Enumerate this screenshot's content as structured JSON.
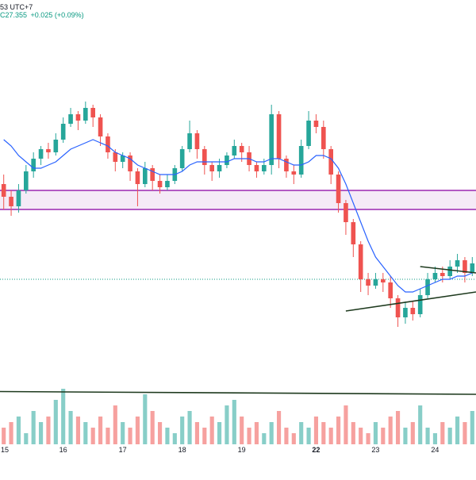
{
  "header": {
    "time_fragment": "53 UTC+7",
    "last_price": "C27.355",
    "change": "+0.025 (+0.09%)"
  },
  "colors": {
    "up": "#26a69a",
    "down": "#ef5350",
    "ma": "#2962ff",
    "zone_line": "#9c27b0",
    "zone_fill": "#f3e5f5",
    "trendline": "#1e3a1e",
    "price_line": "#089981"
  },
  "chart_data": {
    "type": "candlestick",
    "x_axis": {
      "tick_labels": [
        "15",
        "16",
        "17",
        "18",
        "19",
        "22",
        "23",
        "24"
      ],
      "bold_labels": [
        "22"
      ]
    },
    "grid": false,
    "price_series": {
      "candles": [
        [
          0.52,
          0.48,
          0.55,
          0.44
        ],
        [
          0.48,
          0.45,
          0.5,
          0.42
        ],
        [
          0.45,
          0.5,
          0.52,
          0.43
        ],
        [
          0.5,
          0.56,
          0.58,
          0.49
        ],
        [
          0.56,
          0.6,
          0.62,
          0.54
        ],
        [
          0.6,
          0.63,
          0.64,
          0.58
        ],
        [
          0.63,
          0.62,
          0.65,
          0.6
        ],
        [
          0.62,
          0.66,
          0.68,
          0.61
        ],
        [
          0.66,
          0.71,
          0.73,
          0.65
        ],
        [
          0.71,
          0.74,
          0.76,
          0.7
        ],
        [
          0.74,
          0.72,
          0.75,
          0.69
        ],
        [
          0.72,
          0.76,
          0.78,
          0.71
        ],
        [
          0.76,
          0.73,
          0.77,
          0.7
        ],
        [
          0.73,
          0.67,
          0.74,
          0.64
        ],
        [
          0.67,
          0.62,
          0.68,
          0.6
        ],
        [
          0.62,
          0.59,
          0.63,
          0.56
        ],
        [
          0.59,
          0.61,
          0.62,
          0.57
        ],
        [
          0.61,
          0.56,
          0.62,
          0.53
        ],
        [
          0.56,
          0.52,
          0.57,
          0.45
        ],
        [
          0.52,
          0.57,
          0.59,
          0.51
        ],
        [
          0.57,
          0.53,
          0.58,
          0.5
        ],
        [
          0.53,
          0.51,
          0.55,
          0.49
        ],
        [
          0.51,
          0.53,
          0.55,
          0.5
        ],
        [
          0.53,
          0.57,
          0.58,
          0.52
        ],
        [
          0.57,
          0.63,
          0.64,
          0.56
        ],
        [
          0.63,
          0.68,
          0.72,
          0.62
        ],
        [
          0.68,
          0.63,
          0.69,
          0.6
        ],
        [
          0.63,
          0.58,
          0.64,
          0.55
        ],
        [
          0.58,
          0.56,
          0.59,
          0.53
        ],
        [
          0.56,
          0.58,
          0.6,
          0.54
        ],
        [
          0.58,
          0.61,
          0.62,
          0.57
        ],
        [
          0.61,
          0.64,
          0.66,
          0.6
        ],
        [
          0.64,
          0.62,
          0.65,
          0.59
        ],
        [
          0.62,
          0.58,
          0.64,
          0.56
        ],
        [
          0.58,
          0.56,
          0.59,
          0.54
        ],
        [
          0.56,
          0.58,
          0.6,
          0.55
        ],
        [
          0.58,
          0.74,
          0.77,
          0.55
        ],
        [
          0.74,
          0.6,
          0.75,
          0.57
        ],
        [
          0.6,
          0.56,
          0.61,
          0.54
        ],
        [
          0.56,
          0.55,
          0.58,
          0.52
        ],
        [
          0.55,
          0.64,
          0.66,
          0.54
        ],
        [
          0.64,
          0.72,
          0.75,
          0.63
        ],
        [
          0.72,
          0.7,
          0.74,
          0.68
        ],
        [
          0.7,
          0.63,
          0.72,
          0.6
        ],
        [
          0.63,
          0.55,
          0.64,
          0.52
        ],
        [
          0.55,
          0.46,
          0.56,
          0.43
        ],
        [
          0.46,
          0.4,
          0.47,
          0.36
        ],
        [
          0.4,
          0.33,
          0.41,
          0.29
        ],
        [
          0.33,
          0.22,
          0.34,
          0.18
        ],
        [
          0.22,
          0.2,
          0.24,
          0.17
        ],
        [
          0.2,
          0.22,
          0.24,
          0.19
        ],
        [
          0.22,
          0.21,
          0.24,
          0.18
        ],
        [
          0.21,
          0.16,
          0.23,
          0.13
        ],
        [
          0.16,
          0.1,
          0.17,
          0.07
        ],
        [
          0.1,
          0.13,
          0.15,
          0.08
        ],
        [
          0.13,
          0.11,
          0.15,
          0.09
        ],
        [
          0.11,
          0.17,
          0.19,
          0.1
        ],
        [
          0.17,
          0.22,
          0.24,
          0.16
        ],
        [
          0.22,
          0.24,
          0.26,
          0.21
        ],
        [
          0.24,
          0.23,
          0.26,
          0.21
        ],
        [
          0.23,
          0.26,
          0.28,
          0.22
        ],
        [
          0.26,
          0.28,
          0.3,
          0.24
        ],
        [
          0.28,
          0.24,
          0.29,
          0.21
        ],
        [
          0.24,
          0.27,
          0.29,
          0.23
        ]
      ],
      "moving_average": [
        0.66,
        0.64,
        0.61,
        0.59,
        0.57,
        0.57,
        0.58,
        0.59,
        0.61,
        0.63,
        0.64,
        0.65,
        0.66,
        0.65,
        0.64,
        0.62,
        0.61,
        0.6,
        0.58,
        0.57,
        0.56,
        0.55,
        0.55,
        0.55,
        0.56,
        0.58,
        0.59,
        0.59,
        0.59,
        0.59,
        0.59,
        0.6,
        0.6,
        0.6,
        0.59,
        0.59,
        0.6,
        0.6,
        0.59,
        0.58,
        0.58,
        0.59,
        0.61,
        0.61,
        0.6,
        0.57,
        0.52,
        0.46,
        0.4,
        0.34,
        0.29,
        0.26,
        0.23,
        0.2,
        0.18,
        0.18,
        0.19,
        0.2,
        0.21,
        0.22,
        0.22,
        0.23,
        0.23,
        0.24
      ]
    },
    "volume_series": {
      "values": [
        0.3,
        0.4,
        0.5,
        0.2,
        0.6,
        0.4,
        0.5,
        0.8,
        1.0,
        0.6,
        0.5,
        0.4,
        0.3,
        0.5,
        0.3,
        0.7,
        0.4,
        0.3,
        0.5,
        0.9,
        0.6,
        0.4,
        0.3,
        0.2,
        0.5,
        0.6,
        0.4,
        0.3,
        0.5,
        0.4,
        0.7,
        0.8,
        0.5,
        0.3,
        0.4,
        0.2,
        0.4,
        0.6,
        0.3,
        0.2,
        0.4,
        0.3,
        0.5,
        0.4,
        0.3,
        0.5,
        0.7,
        0.4,
        0.3,
        0.2,
        0.4,
        0.3,
        0.5,
        0.6,
        0.3,
        0.4,
        0.7,
        0.3,
        0.2,
        0.4,
        0.3,
        0.5,
        0.4,
        0.6
      ]
    },
    "annotations": {
      "zone": {
        "top": 0.5,
        "bottom": 0.44,
        "label": ""
      },
      "price_line": {
        "value": 0.22
      },
      "triangle": {
        "upper": [
          [
            56,
            0.26
          ],
          [
            63,
            0.24
          ]
        ],
        "lower": [
          [
            46,
            0.12
          ],
          [
            63,
            0.18
          ]
        ]
      },
      "volume_trendline": {
        "from": [
          0,
          0.95
        ],
        "to": [
          63,
          0.9
        ]
      }
    }
  }
}
